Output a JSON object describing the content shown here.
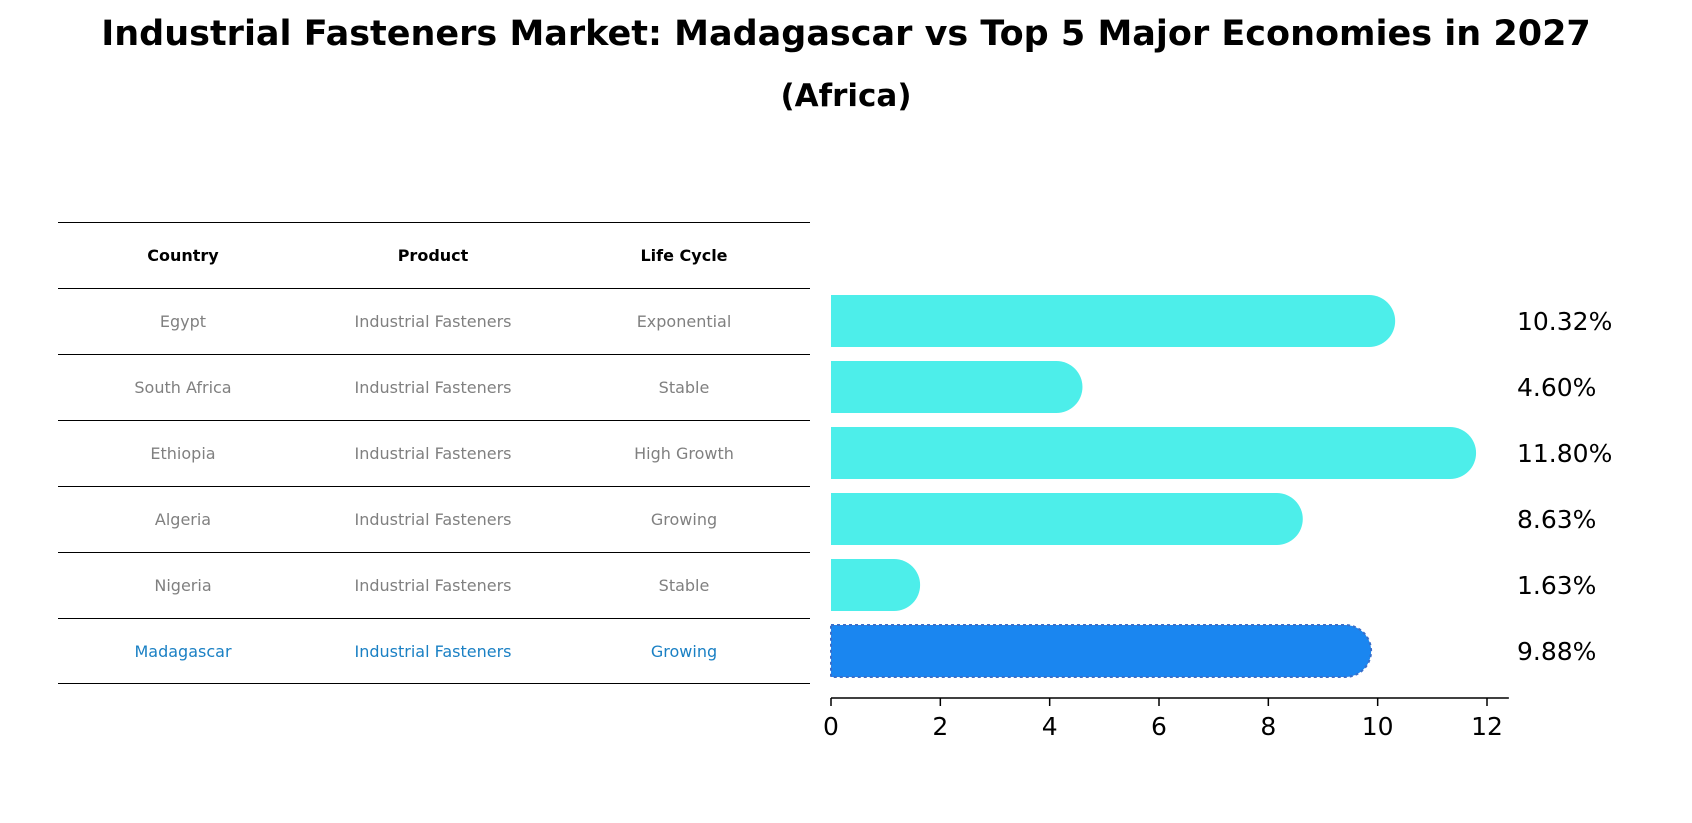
{
  "title": "Industrial Fasteners Market: Madagascar vs Top 5 Major Economies in 2027",
  "subtitle": "(Africa)",
  "table": {
    "headers": [
      "Country",
      "Product",
      "Life Cycle"
    ],
    "rows": [
      {
        "country": "Egypt",
        "product": "Industrial Fasteners",
        "life_cycle": "Exponential"
      },
      {
        "country": "South Africa",
        "product": "Industrial Fasteners",
        "life_cycle": "Stable"
      },
      {
        "country": "Ethiopia",
        "product": "Industrial Fasteners",
        "life_cycle": "High Growth"
      },
      {
        "country": "Algeria",
        "product": "Industrial Fasteners",
        "life_cycle": "Growing"
      },
      {
        "country": "Nigeria",
        "product": "Industrial Fasteners",
        "life_cycle": "Stable"
      },
      {
        "country": "Madagascar",
        "product": "Industrial Fasteners",
        "life_cycle": "Growing"
      }
    ]
  },
  "colors": {
    "bar": "#4deeea",
    "highlight_bar": "#1a86f0",
    "highlight_text": "#1a80c4",
    "muted_text": "#808080"
  },
  "chart_data": {
    "type": "bar",
    "orientation": "horizontal",
    "categories": [
      "Egypt",
      "South Africa",
      "Ethiopia",
      "Algeria",
      "Nigeria",
      "Madagascar"
    ],
    "values": [
      10.32,
      4.6,
      11.8,
      8.63,
      1.63,
      9.88
    ],
    "value_labels": [
      "10.32%",
      "4.60%",
      "11.80%",
      "8.63%",
      "1.63%",
      "9.88%"
    ],
    "highlight_category": "Madagascar",
    "xlim": [
      0,
      12.4
    ],
    "xticks": [
      0,
      2,
      4,
      6,
      8,
      10,
      12
    ],
    "xlabel": "",
    "ylabel": "",
    "grid": false,
    "legend": "none"
  }
}
